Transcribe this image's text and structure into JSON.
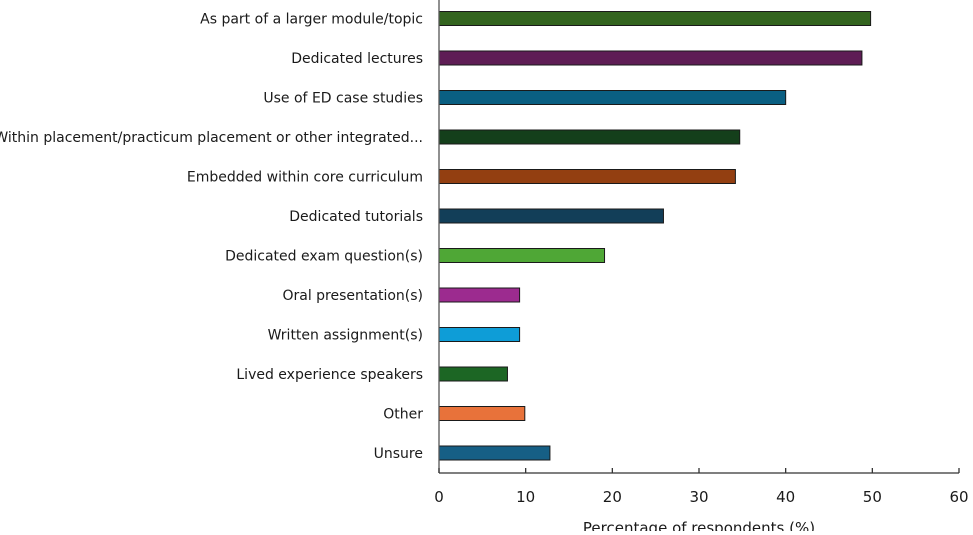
{
  "chart_data": {
    "type": "bar",
    "orientation": "horizontal",
    "title": "",
    "xlabel": "Percentage of respondents (%)",
    "ylabel": "",
    "xlim": [
      0,
      60
    ],
    "xticks": [
      "0",
      "10",
      "20",
      "30",
      "40",
      "50",
      "60"
    ],
    "grid": false,
    "categories": [
      "As part of a larger module/topic",
      "Dedicated lectures",
      "Use of ED case studies",
      "Within placement/practicum placement or other integrated...",
      "Embedded within core curriculum",
      "Dedicated tutorials",
      "Dedicated exam question(s)",
      "Oral presentation(s)",
      "Written assignment(s)",
      "Lived experience speakers",
      "Other",
      "Unsure"
    ],
    "values": [
      49.8,
      48.8,
      40.0,
      34.7,
      34.2,
      25.9,
      19.1,
      9.3,
      9.3,
      7.9,
      9.9,
      12.8
    ],
    "colors": [
      "#33641f",
      "#5e1d55",
      "#0a5f82",
      "#143f1b",
      "#933f11",
      "#123e58",
      "#4fa736",
      "#9c2b8f",
      "#0e9dd7",
      "#1c6624",
      "#e8723a",
      "#165f85"
    ]
  }
}
